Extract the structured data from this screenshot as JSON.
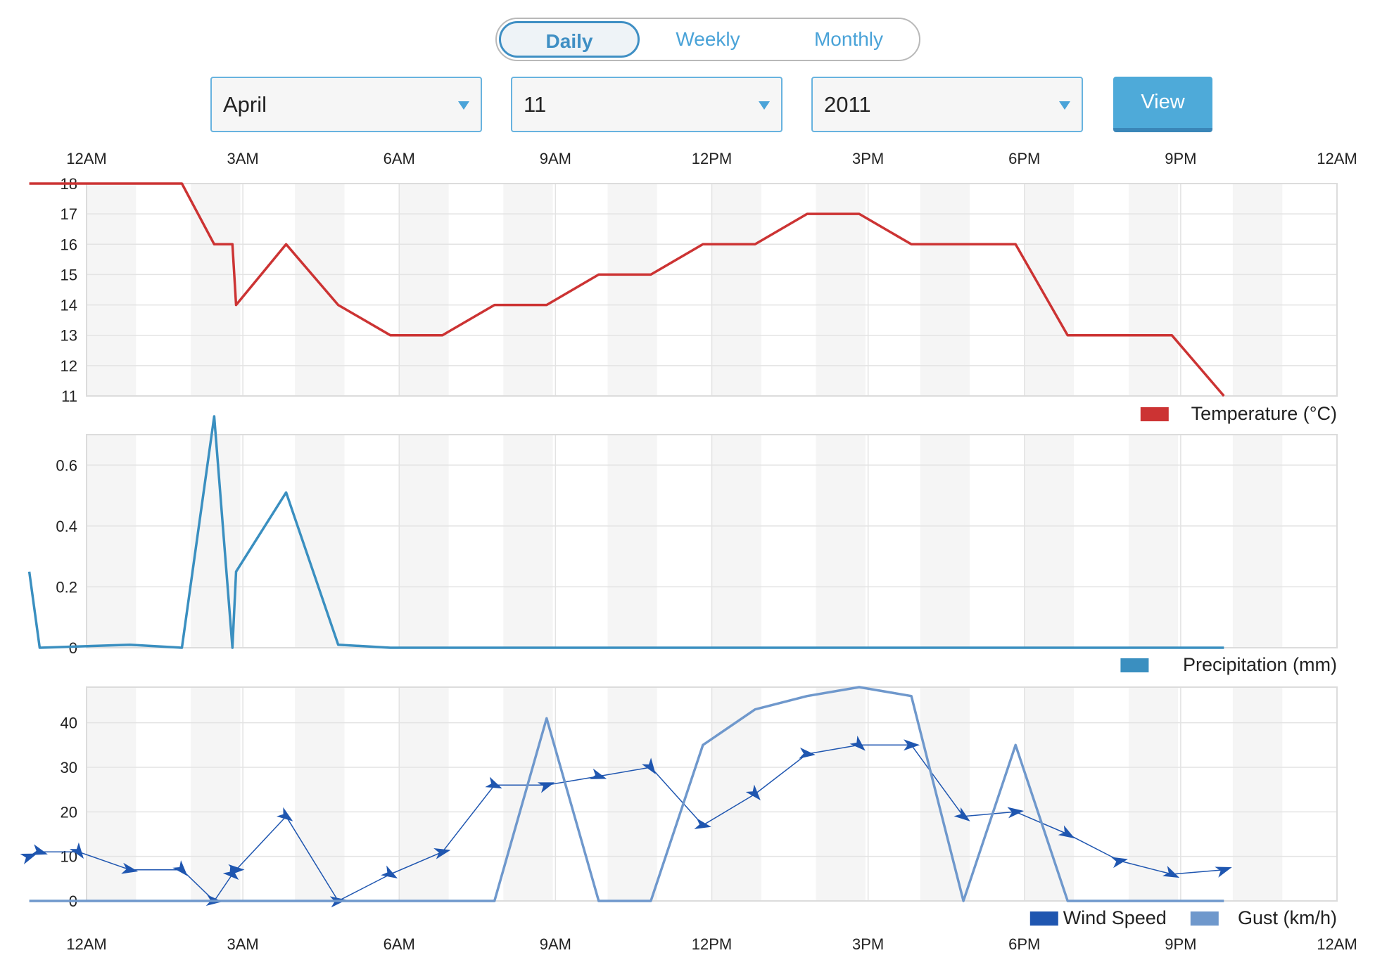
{
  "controls": {
    "tabs": [
      {
        "label": "Daily",
        "active": true
      },
      {
        "label": "Weekly",
        "active": false
      },
      {
        "label": "Monthly",
        "active": false
      }
    ],
    "month": "April",
    "day": "11",
    "year": "2011",
    "view_label": "View"
  },
  "colors": {
    "temperature": "#cc3333",
    "precipitation": "#3a8fc0",
    "wind_speed": "#1f56b0",
    "gust": "#6f98cc",
    "band": "#f5f5f5",
    "grid": "#e3e3e3"
  },
  "chart_data": [
    {
      "type": "line",
      "x_unit": "hours since midnight",
      "x_ticks": [
        "12AM",
        "3AM",
        "6AM",
        "9AM",
        "12PM",
        "3PM",
        "6PM",
        "9PM",
        "12AM"
      ],
      "xlim": [
        0,
        24
      ],
      "ylim": [
        11,
        18
      ],
      "y_ticks": [
        11,
        12,
        13,
        14,
        15,
        16,
        17,
        18
      ],
      "legend": [
        "Temperature (°C)"
      ],
      "series": [
        {
          "name": "Temperature (°C)",
          "x": [
            -1.1,
            1.83,
            2.45,
            2.8,
            2.87,
            3.83,
            4.83,
            5.83,
            6.83,
            7.83,
            8.83,
            9.83,
            10.83,
            11.83,
            12.83,
            13.83,
            14.83,
            15.83,
            16.83,
            17.83,
            18.83,
            19.83,
            20.83,
            21.83
          ],
          "y": [
            18,
            18,
            16,
            16,
            14,
            16,
            14,
            13,
            13,
            14,
            14,
            15,
            15,
            16,
            16,
            17,
            17,
            16,
            16,
            16,
            13,
            13,
            13,
            11
          ]
        }
      ]
    },
    {
      "type": "line",
      "x_unit": "hours since midnight",
      "xlim": [
        0,
        24
      ],
      "ylim": [
        0,
        0.7
      ],
      "y_ticks": [
        0,
        0.2,
        0.4,
        0.6
      ],
      "legend": [
        "Precipitation (mm)"
      ],
      "series": [
        {
          "name": "Precipitation (mm)",
          "x": [
            -1.1,
            -0.9,
            0.83,
            1.83,
            2.45,
            2.8,
            2.87,
            3.83,
            4.83,
            5.83,
            6.83,
            7.83,
            8.83,
            9.83,
            10.83,
            11.83,
            12.83,
            13.83,
            14.83,
            15.83,
            16.83,
            17.83,
            18.83,
            19.83,
            20.83,
            21.83
          ],
          "y": [
            0.25,
            0,
            0.01,
            0,
            0.76,
            0,
            0.25,
            0.51,
            0.01,
            0,
            0,
            0,
            0,
            0,
            0,
            0,
            0,
            0,
            0,
            0,
            0,
            0,
            0,
            0,
            0,
            0
          ]
        }
      ]
    },
    {
      "type": "line",
      "x_unit": "hours since midnight",
      "xlim": [
        0,
        24
      ],
      "ylim": [
        0,
        48
      ],
      "y_ticks": [
        0,
        10,
        20,
        30,
        40
      ],
      "legend": [
        "Wind Speed",
        "Gust (km/h)"
      ],
      "series": [
        {
          "name": "Wind Speed",
          "x": [
            -1.1,
            -0.9,
            -0.15,
            0.83,
            1.83,
            2.45,
            2.8,
            2.87,
            3.83,
            4.83,
            5.83,
            6.83,
            7.83,
            8.83,
            9.83,
            10.83,
            11.83,
            12.83,
            13.83,
            14.83,
            15.83,
            16.83,
            17.83,
            18.83,
            19.83,
            20.83,
            21.83
          ],
          "y": [
            10,
            11,
            11,
            7,
            7,
            0,
            6,
            7,
            19,
            0,
            6,
            11,
            26,
            26,
            28,
            30,
            17,
            24,
            33,
            35,
            35,
            19,
            20,
            15,
            9,
            6,
            7
          ]
        },
        {
          "name": "Gust (km/h)",
          "x": [
            -1.1,
            7.83,
            8.83,
            9.83,
            10.83,
            11.83,
            12.83,
            13.83,
            14.83,
            15.83,
            16.83,
            17.83,
            18.83,
            21.83
          ],
          "y": [
            0,
            0,
            41,
            0,
            0,
            35,
            43,
            46,
            48,
            46,
            0,
            35,
            0,
            0
          ]
        }
      ]
    }
  ]
}
